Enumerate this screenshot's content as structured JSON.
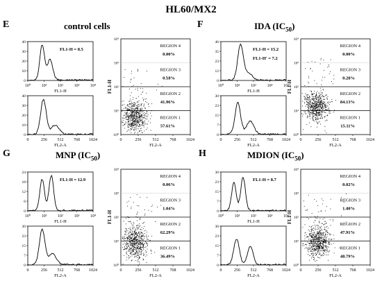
{
  "figure_title": "HL60/MX2",
  "chart_data": [
    {
      "letter": "E",
      "title": "control cells",
      "title_sub": "",
      "type": "panel",
      "histogram_fl1": {
        "xlabel": "FL1-H",
        "x_ticks": [
          "10⁰",
          "10¹",
          "10²",
          "10³",
          "10⁴"
        ],
        "y_ticks": [
          "0",
          "10",
          "20",
          "30",
          "40"
        ],
        "annotation": [
          "FL1-H = 8.5"
        ]
      },
      "histogram_fl2": {
        "xlabel": "FL2-A",
        "x_ticks": [
          "0",
          "256",
          "512",
          "768",
          "1024"
        ],
        "y_ticks": [
          "0",
          "10",
          "20",
          "30",
          "40"
        ]
      },
      "scatter": {
        "xlabel": "FL2-A",
        "ylabel": "FL1-H",
        "x_ticks": [
          "0",
          "256",
          "512",
          "768",
          "1024"
        ],
        "y_ticks": [
          "10⁰",
          "10¹",
          "10²",
          "10³",
          "10⁴"
        ],
        "regions": [
          {
            "name": "REGION 4",
            "percent": "0.00%"
          },
          {
            "name": "REGION 3",
            "percent": "0.18%"
          },
          {
            "name": "REGION 2",
            "percent": "41.96%"
          },
          {
            "name": "REGION 1",
            "percent": "57.61%"
          }
        ]
      }
    },
    {
      "letter": "F",
      "title": "IDA (IC",
      "title_sub": "50",
      "title_end": ")",
      "type": "panel",
      "histogram_fl1": {
        "xlabel": "FL1-H",
        "x_ticks": [
          "10⁰",
          "10¹",
          "10²",
          "10³",
          "10⁴"
        ],
        "y_ticks": [
          "0",
          "12",
          "23",
          "35",
          "46"
        ],
        "annotation": [
          "FL1-H = 15.2",
          "FL1-H' = 7.2"
        ]
      },
      "histogram_fl2": {
        "xlabel": "FL2-A",
        "x_ticks": [
          "0",
          "256",
          "512",
          "768",
          "1024"
        ],
        "y_ticks": [
          "0",
          "7",
          "15",
          "23",
          "30"
        ]
      },
      "scatter": {
        "xlabel": "FL2-A",
        "ylabel": "FL1-H",
        "x_ticks": [
          "0",
          "256",
          "512",
          "768",
          "1024"
        ],
        "y_ticks": [
          "10⁰",
          "10¹",
          "10²",
          "10³",
          "10⁴"
        ],
        "regions": [
          {
            "name": "REGION 4",
            "percent": "0.00%"
          },
          {
            "name": "REGION 3",
            "percent": "0.28%"
          },
          {
            "name": "REGION 2",
            "percent": "84.13%"
          },
          {
            "name": "REGION 1",
            "percent": "15.11%"
          }
        ]
      }
    },
    {
      "letter": "G",
      "title": "MNP (IC",
      "title_sub": "50",
      "title_end": ")",
      "type": "panel",
      "histogram_fl1": {
        "xlabel": "FL1-H",
        "x_ticks": [
          "10⁰",
          "10¹",
          "10²",
          "10³",
          "10⁴"
        ],
        "y_ticks": [
          "0",
          "6",
          "12",
          "18",
          "24"
        ],
        "annotation": [
          "FL1-H = 12.9"
        ]
      },
      "histogram_fl2": {
        "xlabel": "FL2-A",
        "x_ticks": [
          "0",
          "256",
          "512",
          "768",
          "1024"
        ],
        "y_ticks": [
          "0",
          "7",
          "15",
          "23",
          "30"
        ]
      },
      "scatter": {
        "xlabel": "FL2-A",
        "ylabel": "FL1-H",
        "x_ticks": [
          "0",
          "256",
          "512",
          "768",
          "1024"
        ],
        "y_ticks": [
          "10⁰",
          "10¹",
          "10²",
          "10³",
          "10⁴"
        ],
        "regions": [
          {
            "name": "REGION 4",
            "percent": "0.06%"
          },
          {
            "name": "REGION 3",
            "percent": "1.04%"
          },
          {
            "name": "REGION 2",
            "percent": "62.29%"
          },
          {
            "name": "REGION 1",
            "percent": "36.49%"
          }
        ]
      }
    },
    {
      "letter": "H",
      "title": "MDION (IC",
      "title_sub": "50",
      "title_end": ")",
      "type": "panel",
      "histogram_fl1": {
        "xlabel": "FL1-H",
        "x_ticks": [
          "10⁰",
          "10¹",
          "10²",
          "10³",
          "10⁴"
        ],
        "y_ticks": [
          "0",
          "7",
          "15",
          "23",
          "30"
        ],
        "annotation": [
          "FL1-H = 8.7"
        ]
      },
      "histogram_fl2": {
        "xlabel": "FL2-A",
        "x_ticks": [
          "0",
          "256",
          "512",
          "768",
          "1024"
        ],
        "y_ticks": [
          "0",
          "7",
          "15",
          "23",
          "30"
        ]
      },
      "scatter": {
        "xlabel": "FL2-A",
        "ylabel": "FL1-H",
        "x_ticks": [
          "0",
          "256",
          "512",
          "768",
          "1024"
        ],
        "y_ticks": [
          "10⁰",
          "10¹",
          "10²",
          "10³",
          "10⁴"
        ],
        "regions": [
          {
            "name": "REGION 4",
            "percent": "0.02%"
          },
          {
            "name": "REGION 3",
            "percent": "1.40%"
          },
          {
            "name": "REGION 2",
            "percent": "47.91%"
          },
          {
            "name": "REGION 1",
            "percent": "48.79%"
          }
        ]
      }
    }
  ]
}
